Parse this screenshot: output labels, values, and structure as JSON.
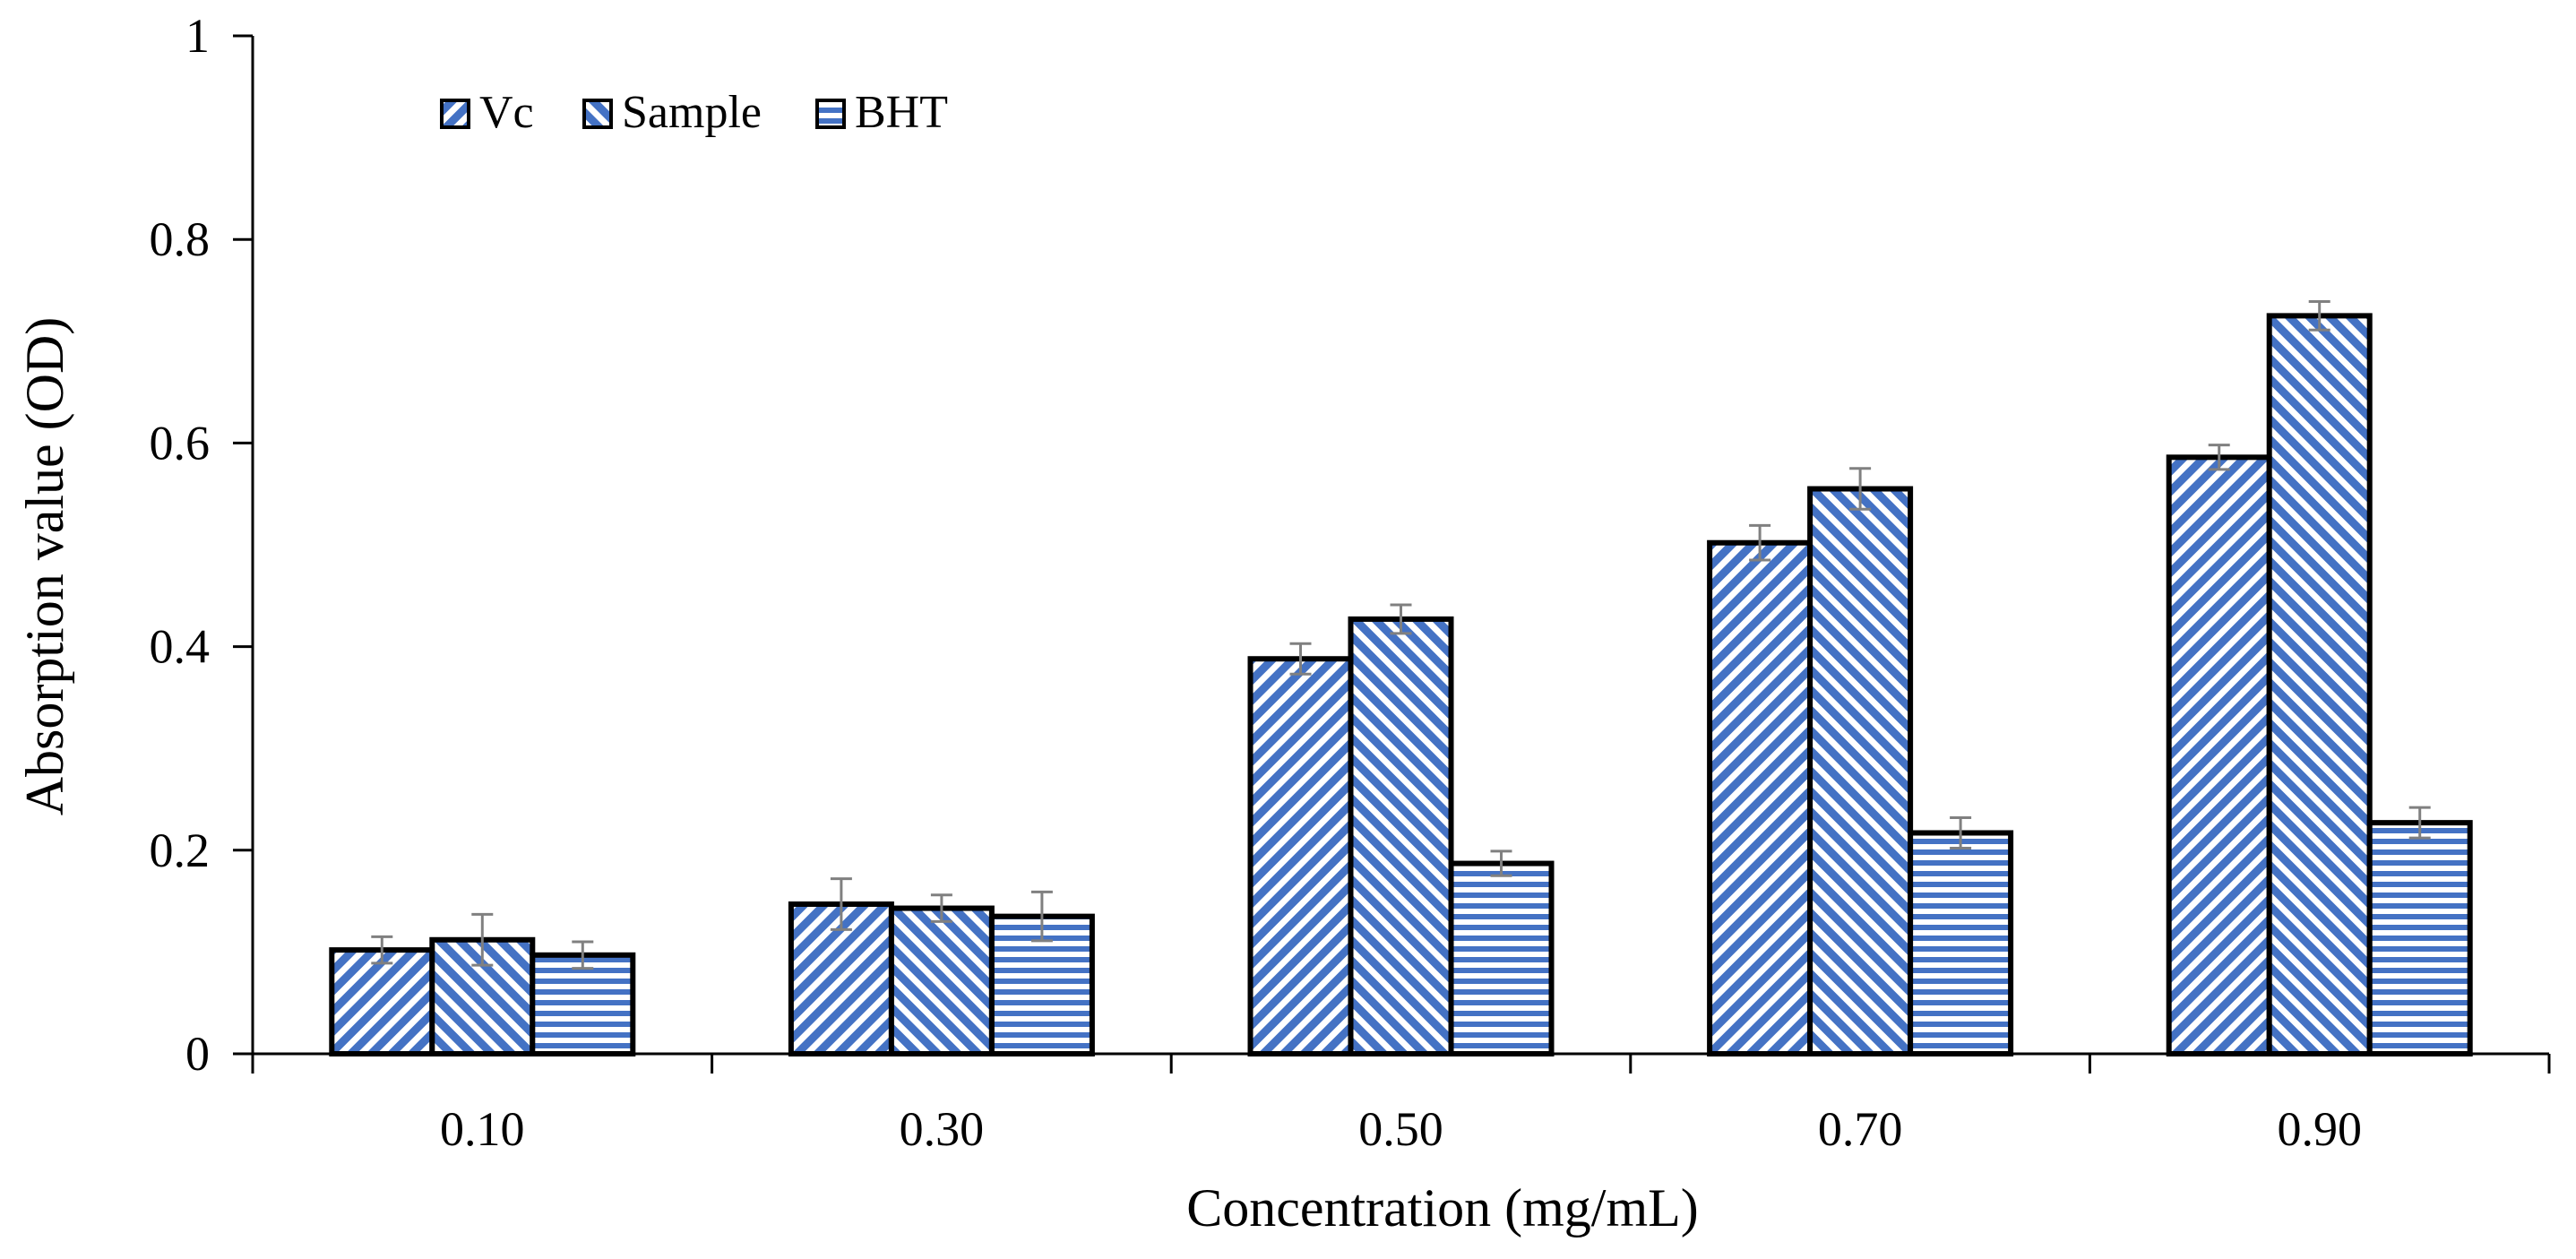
{
  "chart_data": {
    "type": "bar",
    "title": "",
    "xlabel": "Concentration (mg/mL)",
    "ylabel": "Absorption value (OD)",
    "ylim": [
      0,
      1
    ],
    "yticks": [
      0,
      0.2,
      0.4,
      0.6,
      0.8,
      1
    ],
    "ytick_labels": [
      "0",
      "0.2",
      "0.4",
      "0.6",
      "0.8",
      "1"
    ],
    "categories": [
      "0.10",
      "0.30",
      "0.50",
      "0.70",
      "0.90"
    ],
    "series": [
      {
        "name": "Vc",
        "values": [
          0.102,
          0.147,
          0.388,
          0.502,
          0.586
        ],
        "errors": [
          0.013,
          0.025,
          0.015,
          0.017,
          0.012
        ],
        "pattern": "diag-right",
        "color": "#4472c4"
      },
      {
        "name": "Sample",
        "values": [
          0.112,
          0.143,
          0.427,
          0.555,
          0.725
        ],
        "errors": [
          0.025,
          0.013,
          0.014,
          0.02,
          0.014
        ],
        "pattern": "diag-left",
        "color": "#4472c4"
      },
      {
        "name": "BHT",
        "values": [
          0.097,
          0.135,
          0.187,
          0.217,
          0.227
        ],
        "errors": [
          0.013,
          0.024,
          0.012,
          0.015,
          0.015
        ],
        "pattern": "horizontal",
        "color": "#4472c4"
      }
    ],
    "legend": "top-left",
    "grid": false
  }
}
